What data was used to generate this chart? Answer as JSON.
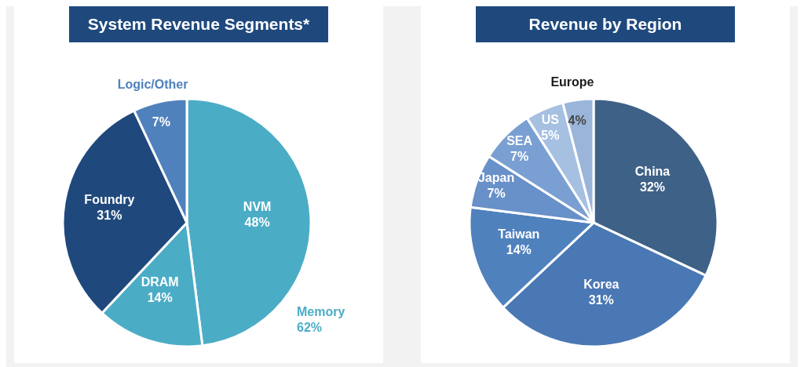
{
  "chart_data": [
    {
      "type": "pie",
      "title": "System Revenue Segments*",
      "categories": [
        "NVM",
        "DRAM",
        "Foundry",
        "Logic/Other"
      ],
      "values": [
        48,
        14,
        31,
        7
      ],
      "value_labels": [
        "48%",
        "14%",
        "31%",
        "7%"
      ],
      "colors": [
        "#4bacc6",
        "#4bacc6",
        "#1f497d",
        "#4f81bd"
      ],
      "annotations": [
        "Memory\n62%"
      ]
    },
    {
      "type": "pie",
      "title": "Revenue by Region",
      "categories": [
        "China",
        "Korea",
        "Taiwan",
        "Japan",
        "SEA",
        "US",
        "Europe"
      ],
      "values": [
        32,
        31,
        14,
        7,
        7,
        5,
        4
      ],
      "value_labels": [
        "32%",
        "31%",
        "14%",
        "7%",
        "7%",
        "5%",
        "4%"
      ],
      "colors": [
        "#3e6187",
        "#4a78b4",
        "#4f81bd",
        "#6890c9",
        "#7a9fd2",
        "#a6c0e2",
        "#9bb5da"
      ]
    }
  ]
}
